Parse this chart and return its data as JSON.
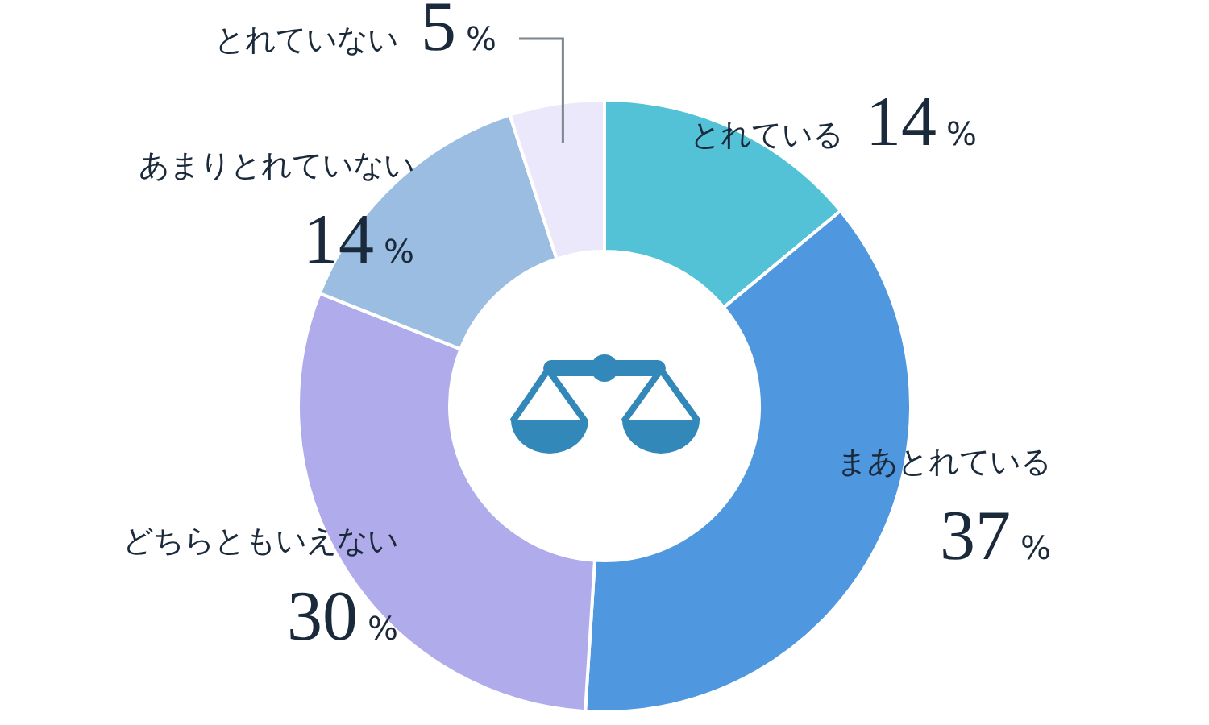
{
  "chart_data": {
    "type": "donut",
    "categories": [
      "とれている",
      "まあとれている",
      "どちらともいえない",
      "あまりとれていない",
      "とれていない"
    ],
    "values": [
      14,
      37,
      30,
      14,
      5
    ],
    "colors": [
      "#53c2d6",
      "#4f97df",
      "#b0acec",
      "#9bbde1",
      "#ece8fc"
    ],
    "value_labels": [
      "14%",
      "37%",
      "30%",
      "14%",
      "5%"
    ]
  }
}
